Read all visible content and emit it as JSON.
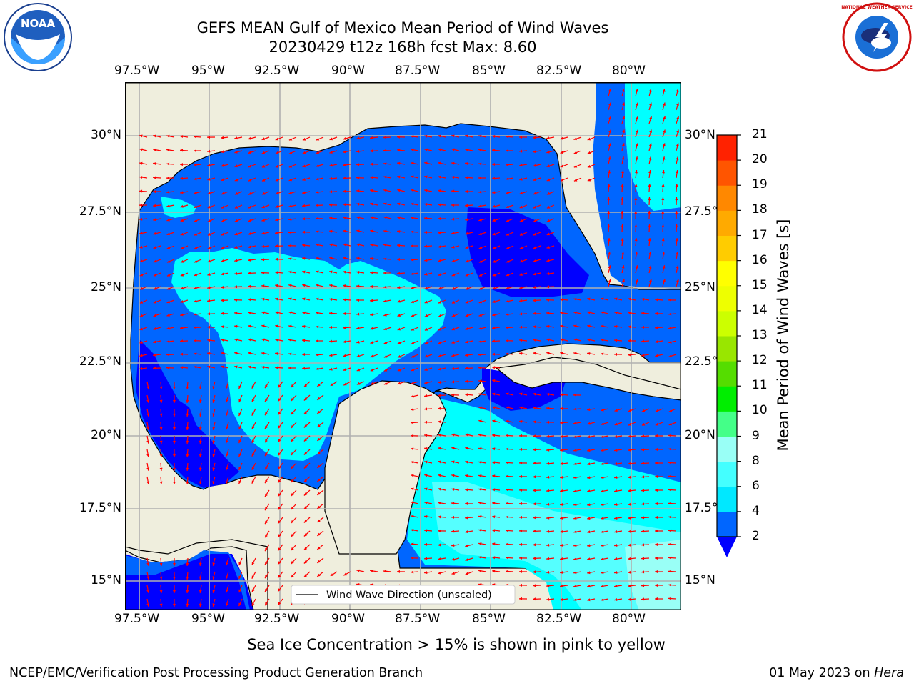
{
  "title_line1": "GEFS MEAN Gulf of Mexico Mean Period of Wind Waves",
  "title_line2": "20230429 t12z 168h fcst   Max: 8.60",
  "x_tick_labels": [
    "97.5°W",
    "95°W",
    "92.5°W",
    "90°W",
    "87.5°W",
    "85°W",
    "82.5°W",
    "80°W"
  ],
  "y_tick_labels_left": [
    "30°N",
    "27.5°N",
    "25°N",
    "22.5°N",
    "20°N",
    "17.5°N",
    "15°N"
  ],
  "y_tick_labels_right": [
    "30°N",
    "27.5°",
    "25°N",
    "22.5°",
    "20°N",
    "17.5°",
    "15°N"
  ],
  "legend": {
    "label": "Wind Wave Direction (unscaled)"
  },
  "colorbar": {
    "label": "Mean Period of Wind Waves [s]",
    "ticks": [
      "2",
      "4",
      "6",
      "8",
      "9",
      "10",
      "11",
      "12",
      "13",
      "14",
      "15",
      "16",
      "17",
      "18",
      "19",
      "20",
      "21"
    ],
    "colors": [
      "#0066ff",
      "#00e8ff",
      "#44ffff",
      "#99fff6",
      "#44ff88",
      "#00ee00",
      "#55dd00",
      "#99e600",
      "#ccff00",
      "#eeff00",
      "#ffff00",
      "#ffcc00",
      "#ffaa00",
      "#ff8800",
      "#ff5500",
      "#ff2200",
      "#ff0000"
    ],
    "extend_color": "#0000ff"
  },
  "map_colors": {
    "land": "#efeedd",
    "sea_2_4": "#0066ff",
    "sea_lt_2": "#0000ff",
    "sea_4_6": "#00ffff",
    "sea_6_8": "#55ffff",
    "arrow": "#ff0000"
  },
  "sea_ice_note": "Sea Ice Concentration > 15% is shown in pink to yellow",
  "footer_left": "NCEP/EMC/Verification Post Processing Product Generation Branch",
  "footer_date": "01 May 2023 on ",
  "footer_machine": "Hera",
  "logo_left_text": "NOAA",
  "logo_right_text": "NATIONAL WEATHER SERVICE"
}
